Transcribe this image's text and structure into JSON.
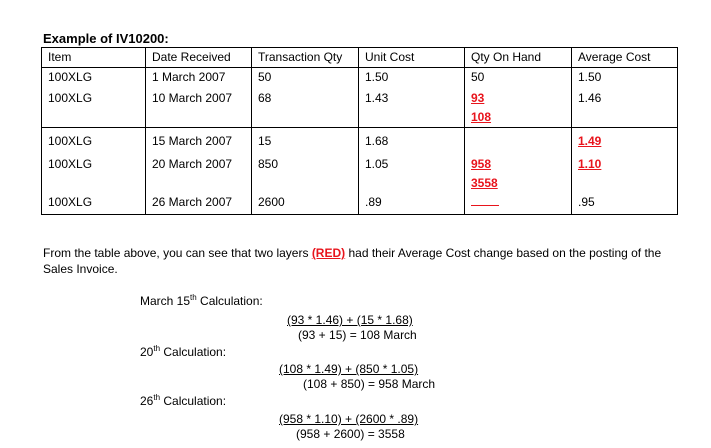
{
  "title": "Example of IV10200:",
  "headers": [
    "Item",
    "Date Received",
    "Transaction Qty",
    "Unit Cost",
    "Qty On Hand",
    "Average Cost"
  ],
  "rows": [
    {
      "item": "100XLG",
      "date": "1 March 2007",
      "qty": "50",
      "cost": "1.50",
      "onhand": [
        "50"
      ],
      "avg": "1.50"
    },
    {
      "item": "100XLG",
      "date": "10 March 2007",
      "qty": "68",
      "cost": "1.43",
      "onhand": [
        "93",
        "108"
      ],
      "avg": "1.46"
    },
    {
      "item": "100XLG",
      "date": "15 March 2007",
      "qty": "15",
      "cost": "1.68",
      "onhand": [],
      "avg": "1.49"
    },
    {
      "item": "100XLG",
      "date": "20 March 2007",
      "qty": "850",
      "cost": "1.05",
      "onhand": [
        "958",
        "3558"
      ],
      "avg": "1.10"
    },
    {
      "item": "100XLG",
      "date": "26 March 2007",
      "qty": "2600",
      "cost": ".89",
      "onhand": [],
      "avg": ".95"
    }
  ],
  "paragraph": {
    "before": "From the table above, you can see that two layers ",
    "highlight": "(RED)",
    "after": " had their Average Cost change based on the posting of the Sales Invoice."
  },
  "calculations": {
    "c1": {
      "label_pre": "March 15",
      "label_sup": "th",
      "label_post": " Calculation:",
      "numerator": "(93 * 1.46) + (15 * 1.68)",
      "denominator": "(93 + 15) = 108 March"
    },
    "c2": {
      "label_pre": "20",
      "label_sup": "th",
      "label_post": " Calculation:",
      "numerator": "(108 * 1.49) + (850 * 1.05)",
      "denominator": "(108 + 850) = 958 March"
    },
    "c3": {
      "label_pre": "26",
      "label_sup": "th",
      "label_post": " Calculation:",
      "numerator": "(958 * 1.10) + (2600 * .89)",
      "denominator": "(958 + 2600) = 3558"
    }
  },
  "colors": {
    "highlight": "#e8141c"
  }
}
